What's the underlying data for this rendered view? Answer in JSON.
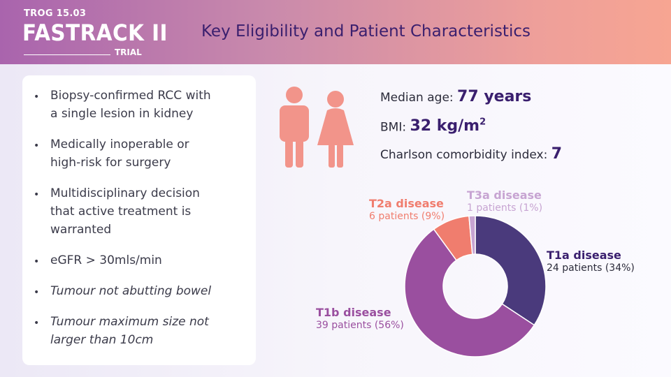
{
  "header": {
    "trog": "TROG 15.03",
    "brand": "FASTRACK II",
    "trial": "TRIAL",
    "title": "Key Eligibility and Patient Characteristics"
  },
  "criteria": [
    {
      "line1": "Biopsy-confirmed RCC with",
      "line2": "a single lesion in kidney"
    },
    {
      "line1": "Medically inoperable or",
      "line2": "high-risk for surgery"
    },
    {
      "line1": "Multidisciplinary decision",
      "line2": "that active treatment is",
      "line3": "warranted"
    },
    {
      "line1": "eGFR > 30mls/min"
    },
    {
      "line1": "Tumour not abutting bowel"
    },
    {
      "line1": "Tumour maximum size not",
      "line2": "larger than 10cm"
    }
  ],
  "stats": {
    "age_label": "Median age: ",
    "age_value": "77 years",
    "bmi_label": "BMI: ",
    "bmi_value": "32 kg/m",
    "bmi_sup": "2",
    "charlson_label": "Charlson comorbidity index: ",
    "charlson_value": "7"
  },
  "colors": {
    "t1a": "#4a3a7c",
    "t1b": "#9a4f9f",
    "t2a": "#f07d6e",
    "t3a": "#c7a4d2",
    "people": "#f2948a"
  },
  "chart_data": {
    "type": "pie",
    "donut": true,
    "title": "",
    "slices": [
      {
        "name": "T1a disease",
        "label": "24 patients (34%)",
        "value": 24
      },
      {
        "name": "T1b disease",
        "label": "39 patients (56%)",
        "value": 39
      },
      {
        "name": "T2a disease",
        "label": "6 patients (9%)",
        "value": 6
      },
      {
        "name": "T3a disease",
        "label": "1 patients (1%)",
        "value": 1
      }
    ]
  }
}
